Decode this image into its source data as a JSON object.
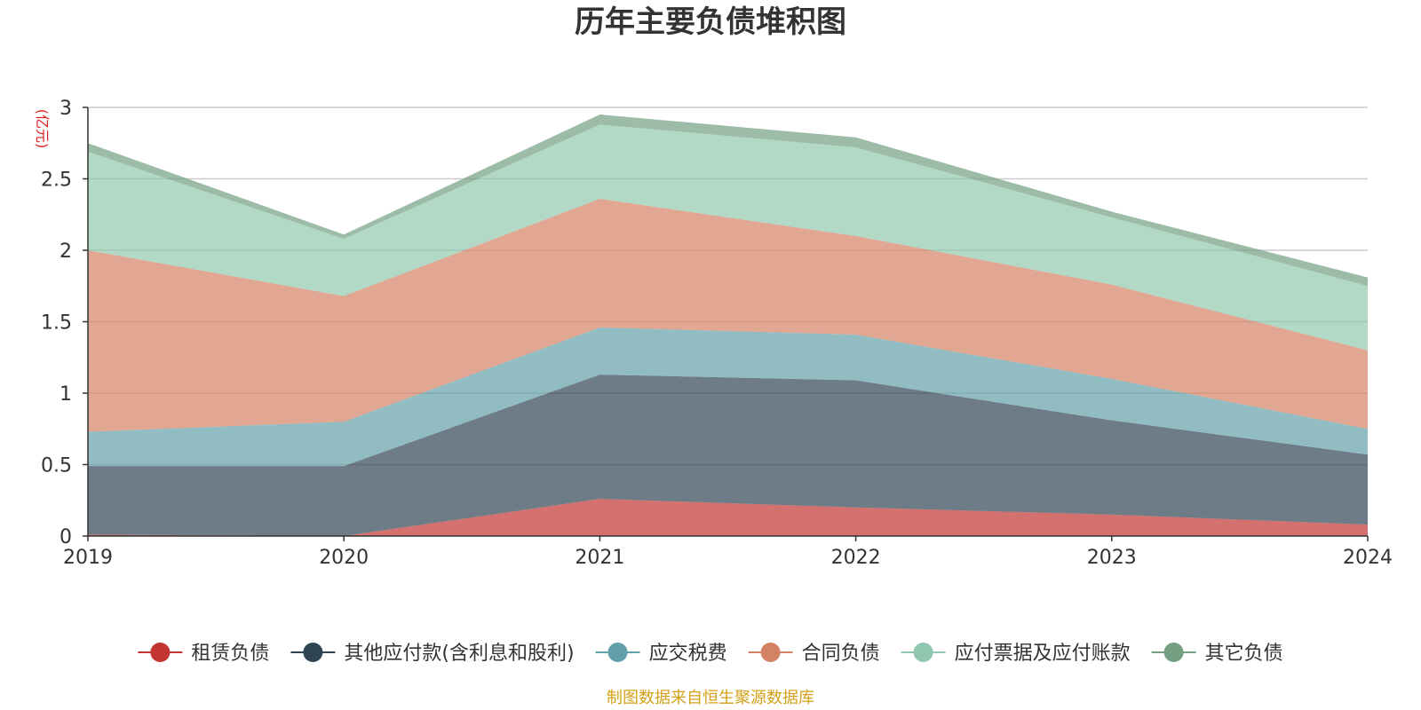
{
  "chart_data": {
    "type": "area",
    "stacked": true,
    "title": "历年主要负债堆积图",
    "unit_label": "(亿元)",
    "source": "制图数据来自恒生聚源数据库",
    "x": [
      "2019",
      "2020",
      "2021",
      "2022",
      "2023",
      "2024"
    ],
    "ylim": [
      0,
      3
    ],
    "yticks": [
      "0",
      "0.5",
      "1",
      "1.5",
      "2",
      "2.5",
      "3"
    ],
    "grid": true,
    "legend_position": "bottom",
    "series": [
      {
        "name": "租赁负债",
        "color": "#c23531",
        "values": [
          0.01,
          0.0,
          0.26,
          0.2,
          0.15,
          0.08
        ]
      },
      {
        "name": "其他应付款(含利息和股利)",
        "color": "#2f4554",
        "values": [
          0.48,
          0.49,
          0.87,
          0.89,
          0.66,
          0.49
        ]
      },
      {
        "name": "应交税费",
        "color": "#61a0a8",
        "values": [
          0.24,
          0.31,
          0.33,
          0.32,
          0.29,
          0.18
        ]
      },
      {
        "name": "合同负债",
        "color": "#d48265",
        "values": [
          1.27,
          0.88,
          0.9,
          0.69,
          0.66,
          0.55
        ]
      },
      {
        "name": "应付票据及应付账款",
        "color": "#91c7ae",
        "values": [
          0.69,
          0.4,
          0.52,
          0.62,
          0.47,
          0.45
        ]
      },
      {
        "name": "其它负债",
        "color": "#749f83",
        "values": [
          0.06,
          0.03,
          0.07,
          0.07,
          0.04,
          0.06
        ]
      }
    ]
  }
}
